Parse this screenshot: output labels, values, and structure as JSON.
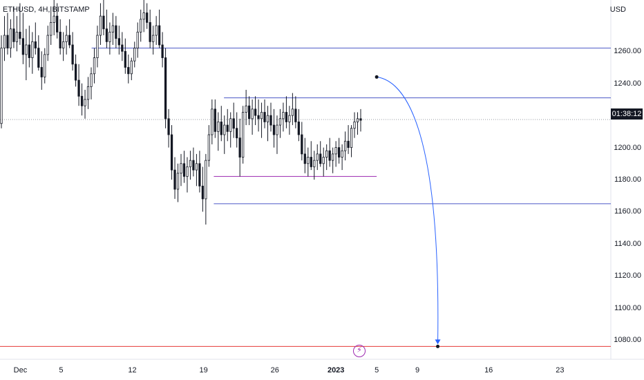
{
  "header": {
    "symbol_title": "ETHUSD, 4H, BITSTAMP",
    "currency": "USD"
  },
  "price_scale": {
    "ticks": [
      "1260.00",
      "1240.00",
      "1220.00",
      "1200.00",
      "1180.00",
      "1160.00",
      "1140.00",
      "1120.00",
      "1100.00",
      "1080.00"
    ]
  },
  "countdown": "01:38:12",
  "time_axis": {
    "labels": [
      {
        "text": "Dec",
        "bold": false
      },
      {
        "text": "5",
        "bold": false
      },
      {
        "text": "12",
        "bold": false
      },
      {
        "text": "19",
        "bold": false
      },
      {
        "text": "26",
        "bold": false
      },
      {
        "text": "2023",
        "bold": true
      },
      {
        "text": "5",
        "bold": false
      },
      {
        "text": "9",
        "bold": false
      },
      {
        "text": "16",
        "bold": false
      },
      {
        "text": "23",
        "bold": false
      }
    ]
  },
  "colors": {
    "up_candle": "#131722",
    "down_candle": "#131722",
    "level_line": "#4a57c6",
    "range_line": "#9c27b0",
    "target_line": "#e53935",
    "projection_arrow": "#2962ff",
    "current_price_line": "#9598a1"
  },
  "chart_data": {
    "type": "candlestick",
    "symbol": "ETHUSD",
    "timeframe": "4H",
    "exchange": "BITSTAMP",
    "price_range": [
      1068,
      1292
    ],
    "x_range": [
      "2022-11-29",
      "2023-01-28"
    ],
    "current_price": 1217.5,
    "horizontal_levels": [
      {
        "price": 1262,
        "color": "#4a57c6",
        "from": "2022-12-08",
        "to": "2023-01-28"
      },
      {
        "price": 1231,
        "color": "#4a57c6",
        "from": "2022-12-21",
        "to": "2023-01-28"
      },
      {
        "price": 1182,
        "color": "#9c27b0",
        "from": "2022-12-20",
        "to": "2023-01-05"
      },
      {
        "price": 1165,
        "color": "#4a57c6",
        "from": "2022-12-20",
        "to": "2023-01-28"
      },
      {
        "price": 1076,
        "color": "#e53935",
        "from": "2022-11-29",
        "to": "2023-01-28"
      }
    ],
    "projection_arrow": {
      "from": {
        "date": "2023-01-05",
        "price": 1244
      },
      "to": {
        "date": "2023-01-11",
        "price": 1076
      }
    },
    "candles": [
      [
        1215,
        1270,
        1212,
        1262
      ],
      [
        1262,
        1282,
        1254,
        1270
      ],
      [
        1270,
        1284,
        1258,
        1262
      ],
      [
        1262,
        1280,
        1256,
        1274
      ],
      [
        1274,
        1288,
        1262,
        1266
      ],
      [
        1266,
        1282,
        1260,
        1272
      ],
      [
        1272,
        1290,
        1264,
        1268
      ],
      [
        1268,
        1284,
        1252,
        1258
      ],
      [
        1258,
        1274,
        1242,
        1264
      ],
      [
        1264,
        1276,
        1250,
        1256
      ],
      [
        1256,
        1272,
        1246,
        1266
      ],
      [
        1266,
        1278,
        1258,
        1262
      ],
      [
        1262,
        1270,
        1248,
        1250
      ],
      [
        1250,
        1260,
        1236,
        1244
      ],
      [
        1244,
        1262,
        1240,
        1258
      ],
      [
        1258,
        1276,
        1254,
        1270
      ],
      [
        1270,
        1288,
        1264,
        1278
      ],
      [
        1278,
        1292,
        1270,
        1282
      ],
      [
        1282,
        1290,
        1268,
        1272
      ],
      [
        1272,
        1280,
        1258,
        1262
      ],
      [
        1262,
        1272,
        1254,
        1266
      ],
      [
        1266,
        1276,
        1258,
        1270
      ],
      [
        1270,
        1280,
        1262,
        1264
      ],
      [
        1264,
        1272,
        1248,
        1252
      ],
      [
        1252,
        1258,
        1238,
        1242
      ],
      [
        1242,
        1252,
        1226,
        1232
      ],
      [
        1232,
        1240,
        1220,
        1226
      ],
      [
        1226,
        1236,
        1218,
        1230
      ],
      [
        1230,
        1244,
        1224,
        1238
      ],
      [
        1238,
        1250,
        1230,
        1246
      ],
      [
        1246,
        1262,
        1240,
        1256
      ],
      [
        1256,
        1276,
        1250,
        1270
      ],
      [
        1270,
        1290,
        1264,
        1282
      ],
      [
        1282,
        1292,
        1270,
        1274
      ],
      [
        1274,
        1286,
        1262,
        1266
      ],
      [
        1266,
        1278,
        1258,
        1272
      ],
      [
        1272,
        1284,
        1264,
        1276
      ],
      [
        1276,
        1282,
        1262,
        1268
      ],
      [
        1268,
        1276,
        1258,
        1264
      ],
      [
        1264,
        1272,
        1254,
        1260
      ],
      [
        1260,
        1268,
        1246,
        1250
      ],
      [
        1250,
        1258,
        1240,
        1246
      ],
      [
        1246,
        1256,
        1242,
        1254
      ],
      [
        1254,
        1266,
        1250,
        1262
      ],
      [
        1262,
        1278,
        1256,
        1272
      ],
      [
        1272,
        1286,
        1266,
        1280
      ],
      [
        1280,
        1292,
        1272,
        1284
      ],
      [
        1284,
        1290,
        1274,
        1278
      ],
      [
        1278,
        1286,
        1262,
        1266
      ],
      [
        1266,
        1276,
        1258,
        1270
      ],
      [
        1270,
        1282,
        1264,
        1276
      ],
      [
        1276,
        1286,
        1262,
        1264
      ],
      [
        1264,
        1272,
        1250,
        1256
      ],
      [
        1256,
        1262,
        1212,
        1218
      ],
      [
        1218,
        1224,
        1200,
        1208
      ],
      [
        1208,
        1214,
        1180,
        1186
      ],
      [
        1186,
        1194,
        1168,
        1174
      ],
      [
        1174,
        1190,
        1166,
        1184
      ],
      [
        1184,
        1196,
        1176,
        1190
      ],
      [
        1190,
        1198,
        1178,
        1182
      ],
      [
        1182,
        1194,
        1172,
        1188
      ],
      [
        1188,
        1198,
        1180,
        1192
      ],
      [
        1192,
        1200,
        1182,
        1186
      ],
      [
        1186,
        1196,
        1176,
        1190
      ],
      [
        1190,
        1198,
        1172,
        1176
      ],
      [
        1176,
        1188,
        1160,
        1168
      ],
      [
        1168,
        1196,
        1152,
        1192
      ],
      [
        1192,
        1214,
        1188,
        1208
      ],
      [
        1208,
        1230,
        1202,
        1224
      ],
      [
        1224,
        1230,
        1206,
        1210
      ],
      [
        1210,
        1222,
        1198,
        1216
      ],
      [
        1216,
        1226,
        1204,
        1208
      ],
      [
        1208,
        1220,
        1196,
        1214
      ],
      [
        1214,
        1224,
        1204,
        1210
      ],
      [
        1210,
        1222,
        1200,
        1218
      ],
      [
        1218,
        1228,
        1206,
        1212
      ],
      [
        1212,
        1222,
        1200,
        1206
      ],
      [
        1206,
        1218,
        1182,
        1194
      ],
      [
        1194,
        1226,
        1190,
        1222
      ],
      [
        1222,
        1236,
        1214,
        1226
      ],
      [
        1226,
        1232,
        1214,
        1218
      ],
      [
        1218,
        1230,
        1208,
        1224
      ],
      [
        1224,
        1232,
        1214,
        1220
      ],
      [
        1220,
        1230,
        1210,
        1218
      ],
      [
        1218,
        1228,
        1206,
        1222
      ],
      [
        1222,
        1230,
        1212,
        1216
      ],
      [
        1216,
        1226,
        1204,
        1220
      ],
      [
        1220,
        1228,
        1210,
        1214
      ],
      [
        1214,
        1224,
        1200,
        1208
      ],
      [
        1208,
        1220,
        1196,
        1214
      ],
      [
        1214,
        1224,
        1206,
        1218
      ],
      [
        1218,
        1228,
        1210,
        1222
      ],
      [
        1222,
        1232,
        1212,
        1216
      ],
      [
        1216,
        1226,
        1208,
        1220
      ],
      [
        1220,
        1234,
        1214,
        1224
      ],
      [
        1224,
        1232,
        1212,
        1216
      ],
      [
        1216,
        1224,
        1204,
        1208
      ],
      [
        1208,
        1216,
        1192,
        1196
      ],
      [
        1196,
        1206,
        1184,
        1190
      ],
      [
        1190,
        1200,
        1182,
        1194
      ],
      [
        1194,
        1204,
        1186,
        1188
      ],
      [
        1188,
        1198,
        1180,
        1192
      ],
      [
        1192,
        1202,
        1186,
        1196
      ],
      [
        1196,
        1204,
        1188,
        1190
      ],
      [
        1190,
        1200,
        1182,
        1194
      ],
      [
        1194,
        1202,
        1186,
        1198
      ],
      [
        1198,
        1206,
        1188,
        1192
      ],
      [
        1192,
        1200,
        1184,
        1196
      ],
      [
        1196,
        1204,
        1188,
        1200
      ],
      [
        1200,
        1206,
        1190,
        1194
      ],
      [
        1194,
        1202,
        1186,
        1198
      ],
      [
        1198,
        1210,
        1192,
        1204
      ],
      [
        1204,
        1214,
        1196,
        1200
      ],
      [
        1200,
        1214,
        1194,
        1212
      ],
      [
        1212,
        1222,
        1206,
        1216
      ],
      [
        1216,
        1222,
        1208,
        1218
      ],
      [
        1218,
        1224,
        1210,
        1217
      ]
    ]
  }
}
